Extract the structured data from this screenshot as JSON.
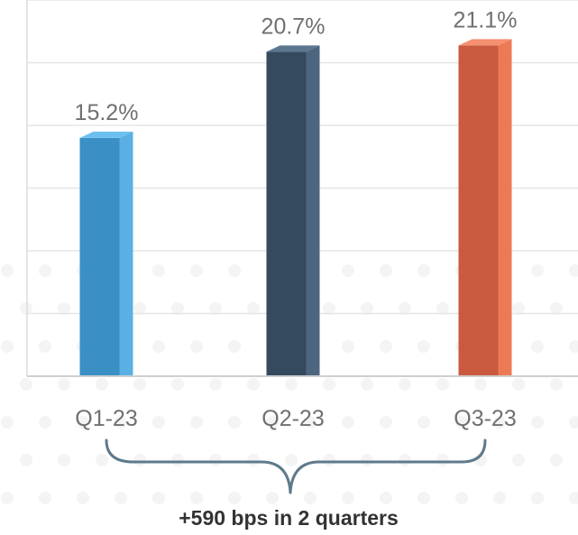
{
  "chart_data": {
    "type": "bar",
    "categories": [
      "Q1-23",
      "Q2-23",
      "Q3-23"
    ],
    "values": [
      15.2,
      20.7,
      21.1
    ],
    "value_labels": [
      "15.2%",
      "20.7%",
      "21.1%"
    ],
    "ylim": [
      0,
      24
    ],
    "grid": true,
    "bar_colors": [
      "#3a8fc4",
      "#354a5e",
      "#c95a40"
    ],
    "bar_side_colors": [
      "#5ab0e4",
      "#4d6680",
      "#ec7a55"
    ],
    "bar_top_colors": [
      "#6cc0ef",
      "#5c7690",
      "#f59070"
    ],
    "annotation": "+590 bps in 2 quarters",
    "title": "",
    "xlabel": "",
    "ylabel": ""
  }
}
